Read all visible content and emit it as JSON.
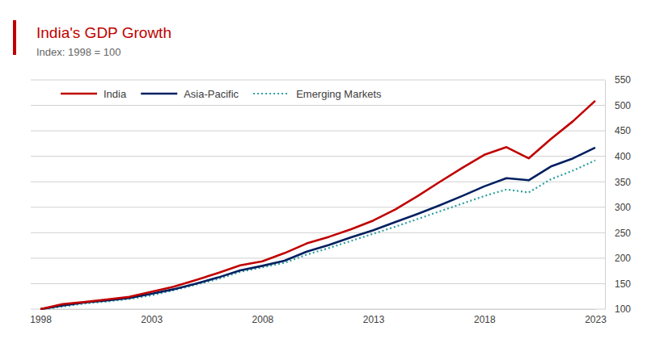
{
  "chart_data": {
    "type": "line",
    "title": "India's GDP Growth",
    "subtitle": "Index: 1998 = 100",
    "x": [
      1998,
      1999,
      2000,
      2001,
      2002,
      2003,
      2004,
      2005,
      2006,
      2007,
      2008,
      2009,
      2010,
      2011,
      2012,
      2013,
      2014,
      2015,
      2016,
      2017,
      2018,
      2019,
      2020,
      2021,
      2022,
      2023
    ],
    "series": [
      {
        "name": "India",
        "color": "#c00000",
        "line_style": "solid",
        "values": [
          100,
          110,
          114,
          119,
          124,
          134,
          144,
          157,
          171,
          186,
          194,
          210,
          229,
          242,
          257,
          274,
          296,
          322,
          350,
          377,
          403,
          418,
          396,
          434,
          469,
          509
        ]
      },
      {
        "name": "Asia-Pacific",
        "color": "#002060",
        "line_style": "solid",
        "values": [
          100,
          107,
          113,
          117,
          122,
          130,
          139,
          150,
          162,
          176,
          185,
          195,
          213,
          226,
          241,
          255,
          271,
          287,
          304,
          322,
          341,
          357,
          353,
          380,
          396,
          417
        ]
      },
      {
        "name": "Emerging Markets",
        "color": "#2e9e9e",
        "line_style": "dotted",
        "values": [
          100,
          105,
          111,
          115,
          120,
          127,
          137,
          148,
          159,
          173,
          182,
          191,
          207,
          220,
          234,
          248,
          262,
          277,
          292,
          307,
          322,
          335,
          329,
          355,
          372,
          392
        ]
      }
    ],
    "xlim": [
      1998,
      2023
    ],
    "xticks": [
      1998,
      2003,
      2008,
      2013,
      2018,
      2023
    ],
    "ylim": [
      100,
      550
    ],
    "yticks": [
      100,
      150,
      200,
      250,
      300,
      350,
      400,
      450,
      500,
      550
    ],
    "grid": true,
    "legend": "top-left"
  }
}
